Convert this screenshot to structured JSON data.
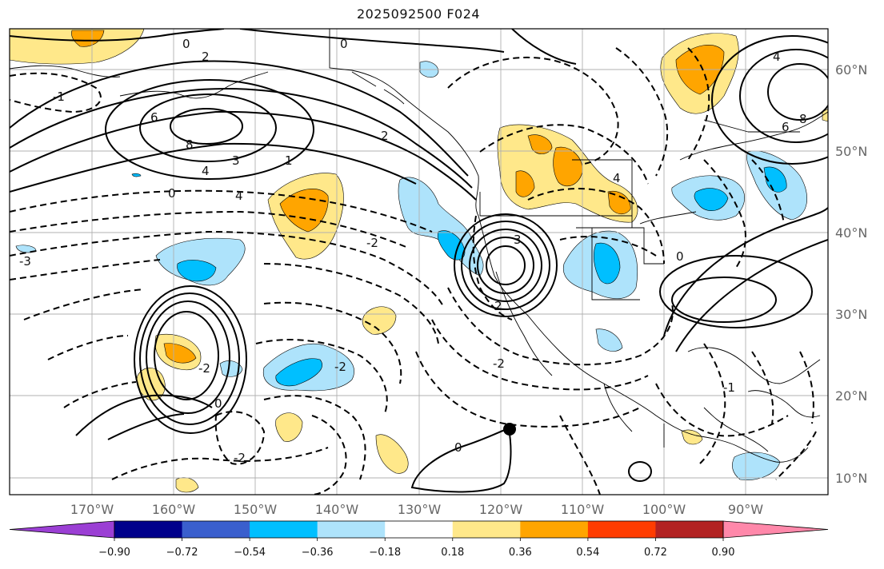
{
  "title": "2025092500 F024",
  "colors": {
    "neg_strong": "#00bfff",
    "neg_light": "#aee3fb",
    "pos_light": "#ffe88a",
    "pos_mid": "#ffa500",
    "contour": "#000000",
    "grid": "#b0b0b0",
    "coast": "#000000"
  },
  "latitudes": [
    "60°N",
    "50°N",
    "40°N",
    "30°N",
    "20°N",
    "10°N"
  ],
  "longitudes": [
    "170°W",
    "160°W",
    "150°W",
    "140°W",
    "130°W",
    "120°W",
    "110°W",
    "100°W",
    "90°W"
  ],
  "colorbar": {
    "ticks": [
      "−0.90",
      "−0.72",
      "−0.54",
      "−0.36",
      "−0.18",
      "0.18",
      "0.36",
      "0.54",
      "0.72",
      "0.90"
    ],
    "colors": [
      "#9b3fd4",
      "#00008b",
      "#3a5fcd",
      "#00bfff",
      "#aee3fb",
      "#ffffff",
      "#ffe88a",
      "#ffa500",
      "#ff3c00",
      "#b22222",
      "#ff88aa"
    ]
  },
  "contour_labels": [
    {
      "text": "0"
    },
    {
      "text": "2"
    },
    {
      "text": "4"
    },
    {
      "text": "6"
    },
    {
      "text": "8"
    },
    {
      "text": "3"
    },
    {
      "text": "-2"
    },
    {
      "text": "-1"
    },
    {
      "text": "-3"
    },
    {
      "text": "1"
    },
    {
      "text": "2"
    },
    {
      "text": "4"
    },
    {
      "text": "0"
    },
    {
      "text": "-2"
    },
    {
      "text": "0"
    },
    {
      "text": "-2"
    },
    {
      "text": "3"
    },
    {
      "text": "2"
    },
    {
      "text": "4"
    },
    {
      "text": "-2"
    },
    {
      "text": "0"
    },
    {
      "text": "6"
    },
    {
      "text": "8"
    },
    {
      "text": "4"
    },
    {
      "text": "-1"
    },
    {
      "text": "0"
    },
    {
      "text": "-2"
    },
    {
      "text": "0"
    }
  ]
}
